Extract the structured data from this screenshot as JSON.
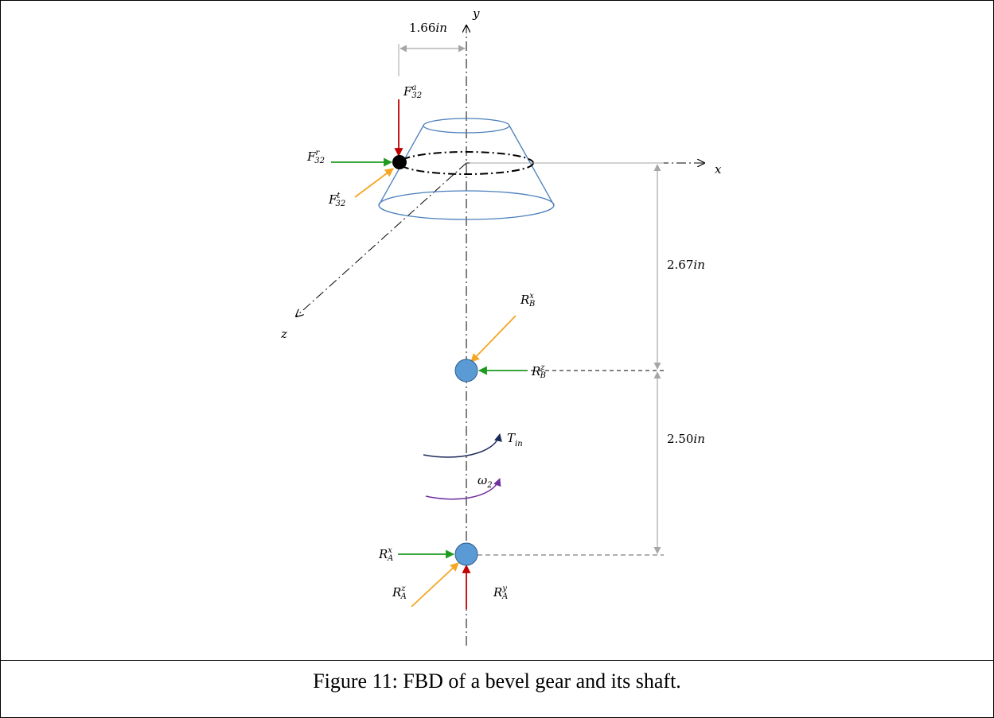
{
  "caption": "Figure 11: FBD of a bevel gear and its shaft.",
  "dimensions": {
    "radius": {
      "value": "1.66",
      "unit": "in"
    },
    "gear_to_bearing_b": {
      "value": "2.67",
      "unit": "in"
    },
    "bearing_b_to_bearing_a": {
      "value": "2.50",
      "unit": "in"
    }
  },
  "axes": {
    "x": "x",
    "y": "y",
    "z": "z"
  },
  "forces": {
    "F32_a": {
      "base": "F",
      "sup": "a",
      "sub": "32",
      "color": "#c00000"
    },
    "F32_r": {
      "base": "F",
      "sup": "r",
      "sub": "32",
      "color": "#1e9a1e"
    },
    "F32_t": {
      "base": "F",
      "sup": "t",
      "sub": "32",
      "color": "#f5a623"
    },
    "RB_x": {
      "base": "R",
      "sup": "x",
      "sub": "B",
      "color": "#f5a623"
    },
    "RB_z": {
      "base": "R",
      "sup": "z",
      "sub": "B",
      "color": "#1e9a1e"
    },
    "RA_x": {
      "base": "R",
      "sup": "x",
      "sub": "A",
      "color": "#1e9a1e"
    },
    "RA_z": {
      "base": "R",
      "sup": "z",
      "sub": "A",
      "color": "#f5a623"
    },
    "RA_y": {
      "base": "R",
      "sup": "y",
      "sub": "A",
      "color": "#c00000"
    }
  },
  "torque": {
    "base": "T",
    "sub": "in",
    "color": "#1c2a5a"
  },
  "angular_velocity": {
    "base": "ω",
    "sub": "2",
    "color": "#7030a0"
  },
  "colors": {
    "gear": "#4a7ebb",
    "bearing": "#5b9bd5",
    "dimension": "#a6a6a6"
  }
}
